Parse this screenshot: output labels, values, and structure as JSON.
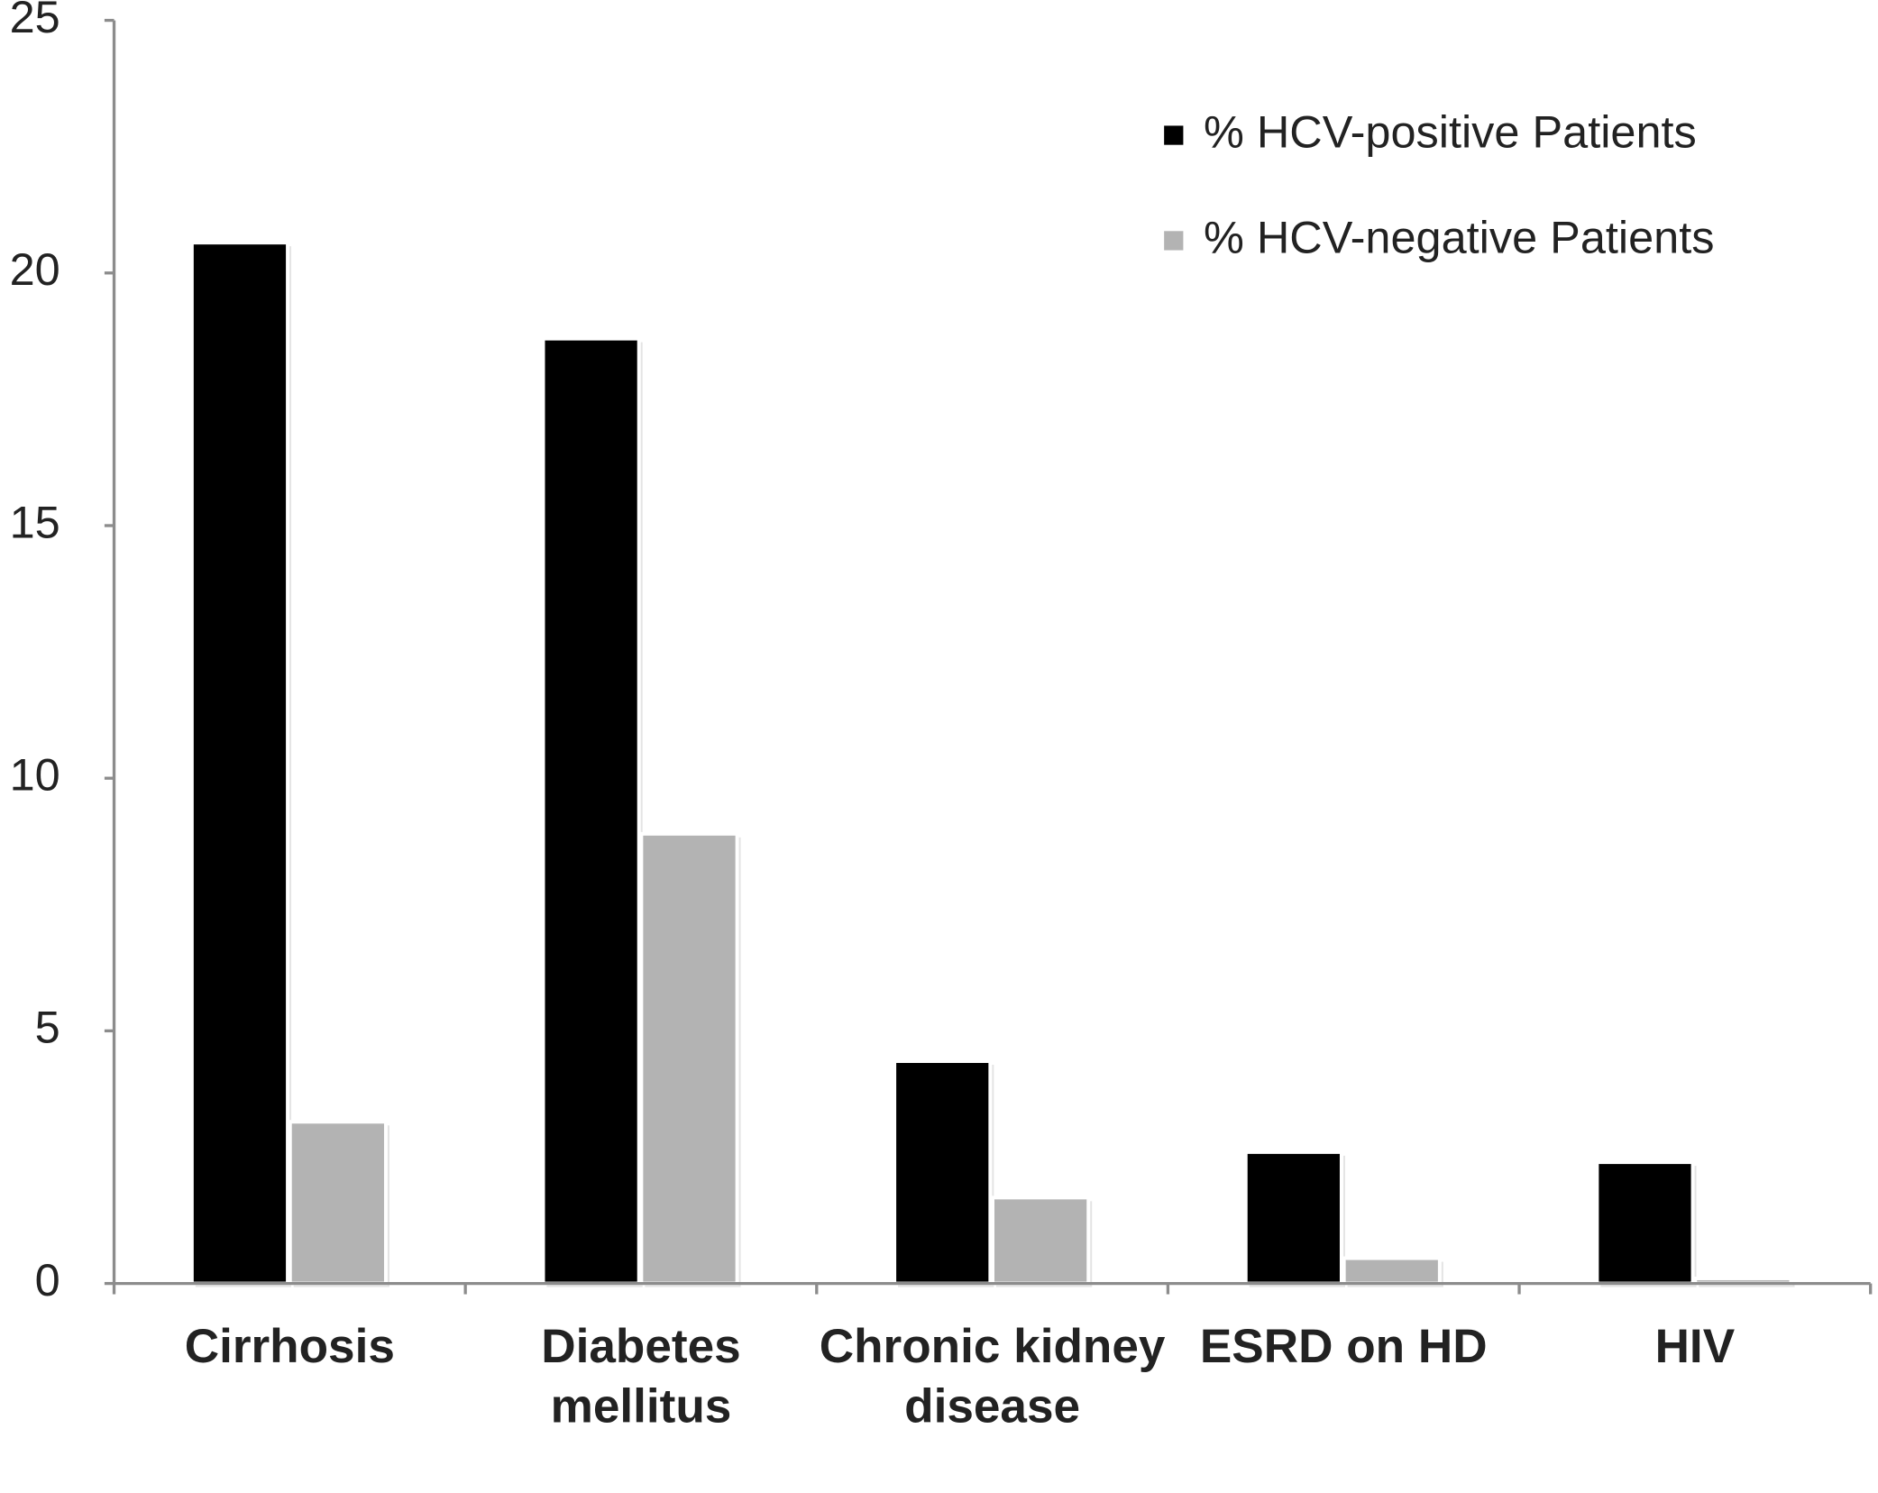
{
  "chart_data": {
    "type": "bar",
    "categories": [
      "Cirrhosis",
      "Diabetes mellitus",
      "Chronic kidney disease",
      "ESRD on HD",
      "HIV"
    ],
    "series": [
      {
        "name": "% HCV-positive Patients",
        "color": "#000000",
        "values": [
          20.6,
          18.7,
          4.4,
          2.6,
          2.4
        ]
      },
      {
        "name": "% HCV-negative Patients",
        "color": "#b3b3b3",
        "values": [
          3.2,
          8.9,
          1.7,
          0.5,
          0.1
        ]
      }
    ],
    "ylim": [
      0,
      25
    ],
    "yticks": [
      0,
      5,
      10,
      15,
      20,
      25
    ],
    "grid": false,
    "legend": "top-right"
  }
}
